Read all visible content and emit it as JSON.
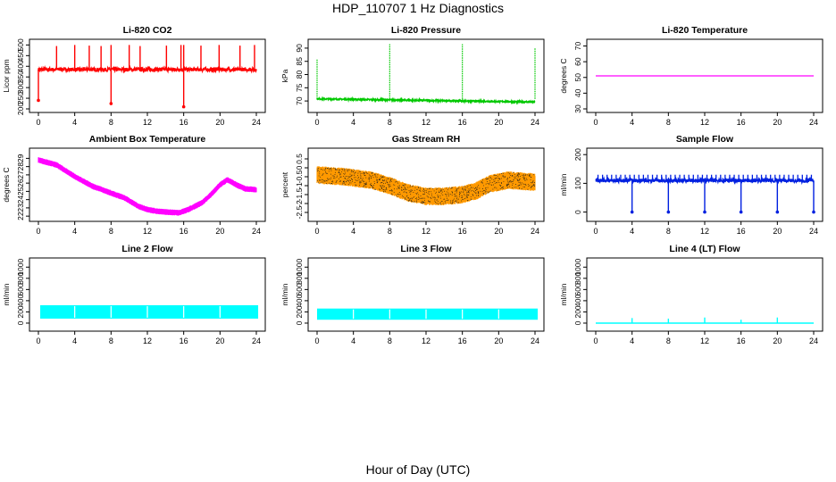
{
  "main_title": "HDP_110707  1 Hz Diagnostics",
  "x_axis_title": "Hour of Day (UTC)",
  "chart_data": [
    {
      "type": "line",
      "title": "Li-820 CO2",
      "ylabel": "Licor ppm",
      "color": "#ff0000",
      "xlim": [
        0,
        24
      ],
      "ylim": [
        200,
        510
      ],
      "xticks": [
        0,
        4,
        8,
        12,
        16,
        20,
        24
      ],
      "yticks": [
        200,
        250,
        300,
        350,
        400,
        450,
        500
      ],
      "series": [
        {
          "name": "CO2",
          "baseline": 385,
          "noise": 8,
          "spikes": [
            [
              2,
              495
            ],
            [
              4,
              500
            ],
            [
              5.6,
              497
            ],
            [
              6.9,
              495
            ],
            [
              8,
              500
            ],
            [
              10,
              500
            ],
            [
              11.2,
              495
            ],
            [
              14.1,
              497
            ],
            [
              15.7,
              500
            ],
            [
              16,
              500
            ],
            [
              17.9,
              497
            ],
            [
              19.9,
              500
            ],
            [
              22.2,
              497
            ],
            [
              23.8,
              500
            ]
          ],
          "dips": [
            [
              0,
              240
            ],
            [
              8,
              225
            ],
            [
              16,
              210
            ]
          ]
        }
      ]
    },
    {
      "type": "line",
      "title": "Li-820 Pressure",
      "ylabel": "kPa",
      "color": "#00c800",
      "xlim": [
        0,
        24
      ],
      "ylim": [
        67,
        92
      ],
      "xticks": [
        0,
        4,
        8,
        12,
        16,
        20,
        24
      ],
      "yticks": [
        70,
        75,
        80,
        85,
        90
      ],
      "series": [
        {
          "name": "Pressure",
          "start": 70.8,
          "end": 69.6,
          "noise": 0.25,
          "spikes": [
            [
              0,
              86
            ],
            [
              8,
              91.5
            ],
            [
              16,
              91.5
            ],
            [
              24,
              90
            ]
          ],
          "dips": []
        }
      ]
    },
    {
      "type": "line",
      "title": "Li-820 Temperature",
      "ylabel": "degrees C",
      "color": "#ff00ff",
      "xlim": [
        0,
        24
      ],
      "ylim": [
        30,
        72
      ],
      "xticks": [
        0,
        4,
        8,
        12,
        16,
        20,
        24
      ],
      "yticks": [
        30,
        40,
        50,
        60,
        70
      ],
      "series": [
        {
          "name": "Temperature",
          "constant": 51
        }
      ]
    },
    {
      "type": "line",
      "title": "Ambient Box Temperature",
      "ylabel": "degrees C",
      "color": "#ff00ff",
      "xlim": [
        0,
        24
      ],
      "ylim": [
        21.8,
        29.8
      ],
      "xticks": [
        0,
        4,
        8,
        12,
        16,
        20,
        24
      ],
      "yticks": [
        22,
        23,
        24,
        25,
        26,
        27,
        28,
        29
      ],
      "series": [
        {
          "name": "Box Temperature",
          "points": [
            [
              0,
              28.8
            ],
            [
              2,
              28.2
            ],
            [
              4,
              26.8
            ],
            [
              6,
              25.6
            ],
            [
              8,
              24.8
            ],
            [
              9.5,
              24.2
            ],
            [
              11,
              23.2
            ],
            [
              12,
              22.8
            ],
            [
              13,
              22.6
            ],
            [
              14,
              22.5
            ],
            [
              15.5,
              22.4
            ],
            [
              16.5,
              22.8
            ],
            [
              18,
              23.6
            ],
            [
              19,
              24.6
            ],
            [
              20,
              25.8
            ],
            [
              20.8,
              26.4
            ],
            [
              21.8,
              25.8
            ],
            [
              22.8,
              25.3
            ],
            [
              24,
              25.2
            ]
          ],
          "band": 0.7
        }
      ]
    },
    {
      "type": "line",
      "title": "Gas Stream RH",
      "ylabel": "percent",
      "color": "#ff9900",
      "dot_color": "#1a1a1a",
      "xlim": [
        0,
        24
      ],
      "ylim": [
        -2.8,
        0.9
      ],
      "xticks": [
        0,
        4,
        8,
        12,
        16,
        20,
        24
      ],
      "yticks": [
        -2.5,
        -2,
        -1.5,
        -1,
        -0.5,
        0,
        0.5
      ],
      "series": [
        {
          "name": "RH",
          "points": [
            [
              0,
              -0.4
            ],
            [
              3,
              -0.5
            ],
            [
              6,
              -0.7
            ],
            [
              8,
              -1.0
            ],
            [
              10,
              -1.4
            ],
            [
              12,
              -1.6
            ],
            [
              14,
              -1.6
            ],
            [
              16,
              -1.5
            ],
            [
              17.5,
              -1.3
            ],
            [
              19,
              -0.9
            ],
            [
              21,
              -0.7
            ],
            [
              24,
              -0.8
            ]
          ],
          "band": 1.0
        }
      ]
    },
    {
      "type": "line",
      "title": "Sample Flow",
      "ylabel": "ml/min",
      "color": "#0020e0",
      "xlim": [
        0,
        24
      ],
      "ylim": [
        -20,
        210
      ],
      "xticks": [
        0,
        4,
        8,
        12,
        16,
        20,
        24
      ],
      "yticks": [
        0,
        100,
        200
      ],
      "series": [
        {
          "name": "Sample Flow",
          "baseline": 110,
          "noise": 6,
          "pulse_top": 130,
          "pulse_every": 0.5,
          "dips": [
            [
              4,
              0
            ],
            [
              8,
              0
            ],
            [
              12,
              0
            ],
            [
              16,
              0
            ],
            [
              20,
              0
            ],
            [
              24,
              0
            ]
          ]
        }
      ]
    },
    {
      "type": "line",
      "title": "Line 2 Flow",
      "ylabel": "ml/min",
      "color": "#00ffff",
      "xlim": [
        0,
        24
      ],
      "ylim": [
        -80,
        1100
      ],
      "xticks": [
        0,
        4,
        8,
        12,
        16,
        20,
        24
      ],
      "yticks": [
        0,
        200,
        400,
        600,
        800,
        1000
      ],
      "series": [
        {
          "name": "Line 2",
          "low": 80,
          "high": 320,
          "start": 0.2,
          "end": 24.2,
          "gaps": [
            4,
            8,
            12,
            16,
            20
          ]
        }
      ]
    },
    {
      "type": "line",
      "title": "Line 3 Flow",
      "ylabel": "ml/min",
      "color": "#00ffff",
      "xlim": [
        0,
        24
      ],
      "ylim": [
        -80,
        1100
      ],
      "xticks": [
        0,
        4,
        8,
        12,
        16,
        20,
        24
      ],
      "yticks": [
        0,
        200,
        400,
        600,
        800,
        1000
      ],
      "series": [
        {
          "name": "Line 3",
          "low": 60,
          "high": 260,
          "start": 0,
          "end": 24.3,
          "gaps": [
            4,
            8,
            12,
            16,
            20
          ]
        }
      ]
    },
    {
      "type": "line",
      "title": "Line 4 (LT) Flow",
      "ylabel": "ml/min",
      "color": "#00ffff",
      "xlim": [
        0,
        24
      ],
      "ylim": [
        -80,
        1100
      ],
      "xticks": [
        0,
        4,
        8,
        12,
        16,
        20,
        24
      ],
      "yticks": [
        0,
        200,
        400,
        600,
        800,
        1000
      ],
      "series": [
        {
          "name": "Line 4",
          "baseline": 0,
          "spikes": [
            [
              4,
              90
            ],
            [
              8,
              80
            ],
            [
              12,
              100
            ],
            [
              16,
              60
            ],
            [
              20,
              100
            ]
          ]
        }
      ]
    }
  ]
}
